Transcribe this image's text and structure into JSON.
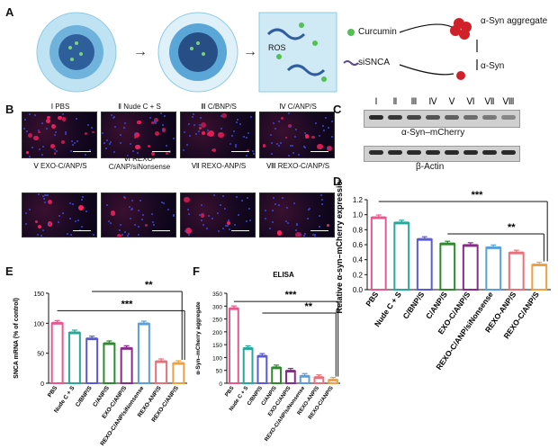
{
  "panels": {
    "A": {
      "label": "A",
      "ros": "ROS",
      "legend": [
        {
          "name": "Curcumin",
          "icon": "green-dot"
        },
        {
          "name": "siSNCA",
          "icon": "rna-strand"
        }
      ],
      "aggregate": "α-Syn aggregate",
      "monomer": "α-Syn"
    },
    "B": {
      "label": "B",
      "groups": [
        "Ⅰ PBS",
        "Ⅱ Nude C + S",
        "Ⅲ C/BNP/S",
        "Ⅳ C/ANP/S",
        "Ⅴ EXO-C/ANP/S",
        "Ⅵ REXO-C/ANP/siNonsense",
        "Ⅶ REXO-ANP/S",
        "Ⅷ REXO-C/ANP/S"
      ]
    },
    "C": {
      "label": "C",
      "lanes": [
        "Ⅰ",
        "Ⅱ",
        "Ⅲ",
        "Ⅳ",
        "Ⅴ",
        "Ⅵ",
        "Ⅶ",
        "Ⅷ"
      ],
      "target": "α-Syn–mCherry",
      "control": "β-Actin"
    },
    "D": {
      "label": "D"
    },
    "E": {
      "label": "E"
    },
    "F": {
      "label": "F"
    }
  },
  "colors": {
    "PBS": "#e8588c",
    "Nude": "#26a99a",
    "CBNP": "#5b5bd6",
    "CANP": "#2f8a2f",
    "EXO": "#8a2a8a",
    "siNon": "#5aa0d8",
    "REXOANP": "#e8707a",
    "REXOCANP": "#f0a040"
  },
  "chart_data": [
    {
      "type": "bar",
      "panel": "D",
      "ylabel": "Relative α-syn–mCherry expression",
      "ylim": [
        0,
        1.2
      ],
      "yticks": [
        0.0,
        0.2,
        0.4,
        0.6,
        0.8,
        1.0,
        1.2
      ],
      "categories": [
        "PBS",
        "Nude C + S",
        "C/BNP/S",
        "C/ANP/S",
        "EXO-C/ANP/S",
        "REXO-C/ANP/siNonsense",
        "REXO-ANP/S",
        "REXO-C/ANP/S"
      ],
      "values": [
        0.96,
        0.89,
        0.67,
        0.61,
        0.59,
        0.56,
        0.49,
        0.33
      ],
      "significance": [
        "***",
        "**"
      ]
    },
    {
      "type": "bar",
      "panel": "E",
      "ylabel": "SNCA mRNA (% of control)",
      "ylim": [
        0,
        150
      ],
      "yticks": [
        0,
        50,
        100,
        150
      ],
      "categories": [
        "PBS",
        "Nude C + S",
        "C/BNP/S",
        "C/ANP/S",
        "EXO-C/ANP/S",
        "REXO-C/ANP/siNonsense",
        "REXO-ANP/S",
        "REXO-C/ANP/S"
      ],
      "values": [
        100,
        84,
        74,
        66,
        58,
        99,
        36,
        33
      ],
      "significance": [
        "***",
        "**"
      ]
    },
    {
      "type": "bar",
      "panel": "F",
      "title": "ELISA",
      "ylabel": "α-Syn–mCherry aggregate",
      "ylim": [
        0,
        350
      ],
      "yticks": [
        0,
        50,
        100,
        150,
        200,
        250,
        300,
        350
      ],
      "categories": [
        "PBS",
        "Nude C + S",
        "C/BNP/S",
        "C/ANP/S",
        "EXO-C/ANP/S",
        "REXO-C/ANP/siNonsense",
        "REXO-ANP/S",
        "REXO-C/ANP/S"
      ],
      "values": [
        290,
        135,
        105,
        60,
        47,
        27,
        22,
        12
      ],
      "significance": [
        "***",
        "**"
      ]
    }
  ]
}
